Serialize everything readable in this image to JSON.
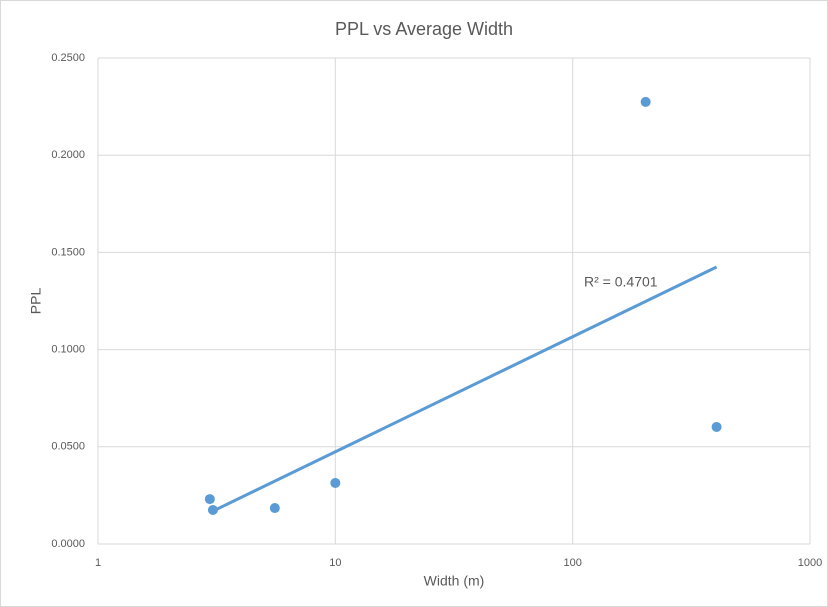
{
  "chart_data": {
    "type": "scatter",
    "title": "PPL vs Average Width",
    "x_label": "Width (m)",
    "y_label": "PPL",
    "series": [
      {
        "name": "PPL",
        "color": "#5b9bd5",
        "x": [
          2.96,
          3.05,
          5.56,
          10,
          203,
          404
        ],
        "values": [
          0.0231,
          0.0175,
          0.0185,
          0.0314,
          0.2274,
          0.0602
        ]
      }
    ],
    "trendline": {
      "type": "logarithmic",
      "color": "#5b9bd5",
      "x": [
        3,
        404
      ],
      "values": [
        0.0165,
        0.1425
      ],
      "annotation": "R² = 0.4701"
    },
    "xscale": "log",
    "xlim": [
      1,
      1000
    ],
    "xticks": [
      1,
      10,
      100,
      1000
    ],
    "ylim": [
      0,
      0.25
    ],
    "yticks": [
      {
        "value": 0,
        "label": "0.0000"
      },
      {
        "value": 0.05,
        "label": "0.0500"
      },
      {
        "value": 0.1,
        "label": "0.1000"
      },
      {
        "value": 0.15,
        "label": "0.1500"
      },
      {
        "value": 0.2,
        "label": "0.2000"
      },
      {
        "value": 0.25,
        "label": "0.2500"
      }
    ],
    "grid": true
  }
}
